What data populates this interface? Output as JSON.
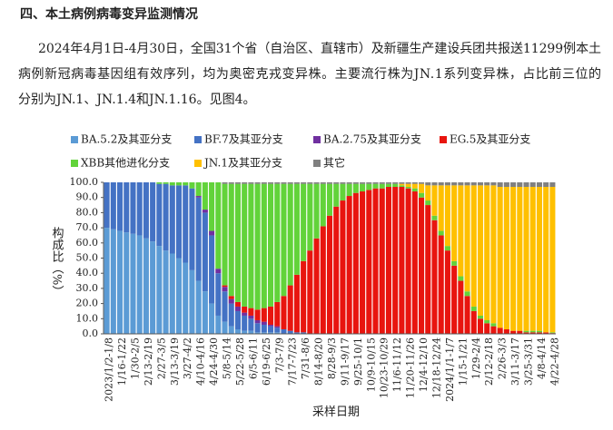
{
  "header": {
    "title": "四、本土病例病毒变异监测情况"
  },
  "paragraph": {
    "lines": [
      "2024年4月1日-4月30日，全国31个省（自治区、直辖市）及新疆生产建设兵团共报送11299例本土",
      "病例新冠病毒基因组有效序列，均为奥密克戎变异株。主要流行株为JN.1系列变异株，占比前三位的",
      "分别为JN.1、JN.1.4和JN.1.16。见图4。"
    ]
  },
  "chart_data": {
    "type": "bar",
    "stacked": true,
    "ylabel": "构成比（%）",
    "xlabel": "采样日期",
    "ylim": [
      0,
      100
    ],
    "yticks": [
      {
        "value": 0,
        "label": "0.0"
      },
      {
        "value": 10,
        "label": "10.0"
      },
      {
        "value": 20,
        "label": "20.0"
      },
      {
        "value": 30,
        "label": "30.0"
      },
      {
        "value": 40,
        "label": "40.0"
      },
      {
        "value": 50,
        "label": "50.0"
      },
      {
        "value": 60,
        "label": "60.0"
      },
      {
        "value": 70,
        "label": "70.0"
      },
      {
        "value": 80,
        "label": "80.0"
      },
      {
        "value": 90,
        "label": "90.0"
      },
      {
        "value": 100,
        "label": "100.0"
      }
    ],
    "categories": [
      "2023/1/2-1/8",
      null,
      "1/16-1/22",
      null,
      "1/30-2/5",
      null,
      "2/13-2/19",
      null,
      "2/27-3/5",
      null,
      "3/13-3/19",
      null,
      "3/27-4/2",
      null,
      "4/10-4/16",
      null,
      "4/24-4/30",
      null,
      "5/8-5/14",
      null,
      "5/22-5/28",
      null,
      "6/5-6/11",
      null,
      "6/19-6/25",
      null,
      "7/3-7/9",
      null,
      "7/17-7/23",
      null,
      "7/31-8/6",
      null,
      "8/14-8/20",
      null,
      "8/28-9/3",
      null,
      "9/11-9/17",
      null,
      "9/25-10/1",
      null,
      "10/9-10/15",
      null,
      "10/23-10/29",
      null,
      "11/6-11/12",
      null,
      "11/20-11/26",
      null,
      "12/4-12/10",
      null,
      "12/18-12/24",
      null,
      "2024/1/1-1/7",
      null,
      "1/15-1/21",
      null,
      "1/29-2/4",
      null,
      "2/12-2/18",
      null,
      "2/26-3/3",
      null,
      "3/11-3/17",
      null,
      "3/25-3/31",
      null,
      "4/8-4/14",
      null,
      "4/22-4/28"
    ],
    "series": [
      {
        "name": "BA.5.2及其亚分支",
        "color": "#5b9bd5",
        "values": [
          70,
          69,
          68,
          67,
          66,
          65,
          63,
          61,
          58,
          55,
          53,
          50,
          47,
          42,
          35,
          28,
          20,
          12,
          8,
          5,
          3,
          2,
          2,
          1,
          1,
          1,
          1,
          0,
          0,
          0,
          0,
          0,
          0,
          0,
          0,
          0,
          0,
          0,
          0,
          0,
          0,
          0,
          0,
          0,
          0,
          0,
          0,
          0,
          0,
          0,
          0,
          0,
          0,
          0,
          0,
          0,
          0,
          0,
          0,
          0,
          0,
          0,
          0,
          0,
          0,
          0,
          0,
          0,
          0
        ]
      },
      {
        "name": "BF.7及其亚分支",
        "color": "#4472c4",
        "values": [
          30,
          31,
          32,
          33,
          34,
          35,
          37,
          39,
          41,
          44,
          45,
          48,
          51,
          54,
          55,
          52,
          45,
          28,
          20,
          15,
          12,
          10,
          8,
          6,
          5,
          4,
          3,
          3,
          2,
          1,
          1,
          0,
          0,
          0,
          0,
          0,
          0,
          0,
          0,
          0,
          0,
          0,
          0,
          0,
          0,
          0,
          0,
          0,
          0,
          0,
          0,
          0,
          0,
          0,
          0,
          0,
          0,
          0,
          0,
          0,
          0,
          0,
          0,
          0,
          0,
          0,
          0,
          0,
          0
        ]
      },
      {
        "name": "BA.2.75及其亚分支",
        "color": "#7030a0",
        "values": [
          0,
          0,
          0,
          0,
          0,
          0,
          0,
          0,
          0,
          0,
          0,
          0,
          0,
          0,
          1,
          2,
          3,
          3,
          3,
          3,
          3,
          2,
          2,
          2,
          2,
          1,
          1,
          0,
          0,
          0,
          0,
          0,
          0,
          0,
          0,
          0,
          0,
          0,
          0,
          0,
          0,
          0,
          0,
          0,
          0,
          0,
          0,
          0,
          0,
          0,
          0,
          0,
          0,
          0,
          0,
          0,
          0,
          0,
          0,
          0,
          0,
          0,
          0,
          0,
          0,
          0,
          0,
          0,
          0
        ]
      },
      {
        "name": "EG.5及其亚分支",
        "color": "#e8150f",
        "values": [
          0,
          0,
          0,
          0,
          0,
          0,
          0,
          0,
          0,
          0,
          0,
          0,
          0,
          0,
          0,
          0,
          0,
          0,
          1,
          2,
          3,
          4,
          5,
          7,
          9,
          12,
          16,
          22,
          30,
          38,
          47,
          55,
          63,
          71,
          78,
          84,
          88,
          91,
          93,
          94,
          95,
          96,
          96,
          97,
          97,
          97,
          96,
          94,
          90,
          85,
          75,
          65,
          55,
          45,
          35,
          25,
          15,
          10,
          7,
          5,
          4,
          3,
          2,
          2,
          1,
          1,
          1,
          1,
          0.5
        ]
      },
      {
        "name": "XBB其他进化分支",
        "color": "#62d33a",
        "values": [
          0,
          0,
          0,
          0,
          0,
          0,
          0,
          0,
          1,
          1,
          2,
          2,
          2,
          4,
          9,
          18,
          32,
          57,
          67,
          74,
          78,
          81,
          82,
          83,
          82,
          81,
          78,
          74,
          67,
          60,
          51,
          44,
          36,
          28,
          21,
          15,
          11,
          8,
          6,
          5,
          4,
          3,
          3,
          2,
          2,
          1,
          1,
          2,
          3,
          3,
          3,
          3,
          3,
          3,
          3,
          3,
          3,
          2,
          2,
          2,
          0,
          0,
          0,
          0,
          1,
          1,
          1,
          0,
          0.5
        ]
      },
      {
        "name": "JN.1及其亚分支",
        "color": "#ffc000",
        "values": [
          0,
          0,
          0,
          0,
          0,
          0,
          0,
          0,
          0,
          0,
          0,
          0,
          0,
          0,
          0,
          0,
          0,
          0,
          0,
          0,
          0,
          0,
          0,
          0,
          0,
          0,
          0,
          0,
          0,
          0,
          0,
          0,
          0,
          0,
          0,
          0,
          0,
          0,
          0,
          0,
          0,
          0,
          0,
          0,
          0,
          1,
          2,
          3,
          6,
          10,
          20,
          30,
          40,
          50,
          60,
          70,
          80,
          86,
          89,
          91,
          93,
          94,
          95,
          95,
          95,
          95,
          95,
          96,
          96
        ]
      },
      {
        "name": "其它",
        "color": "#808080",
        "values": [
          0,
          0,
          0,
          0,
          0,
          0,
          0,
          0,
          0,
          0,
          0,
          0,
          0,
          0,
          0,
          0,
          0,
          0,
          1,
          1,
          1,
          1,
          1,
          1,
          1,
          1,
          1,
          1,
          1,
          1,
          1,
          1,
          1,
          1,
          1,
          1,
          1,
          1,
          1,
          1,
          1,
          1,
          1,
          1,
          1,
          1,
          1,
          1,
          1,
          2,
          2,
          2,
          2,
          2,
          2,
          2,
          2,
          2,
          2,
          2,
          3,
          3,
          3,
          3,
          3,
          3,
          3,
          3,
          3
        ]
      }
    ]
  }
}
